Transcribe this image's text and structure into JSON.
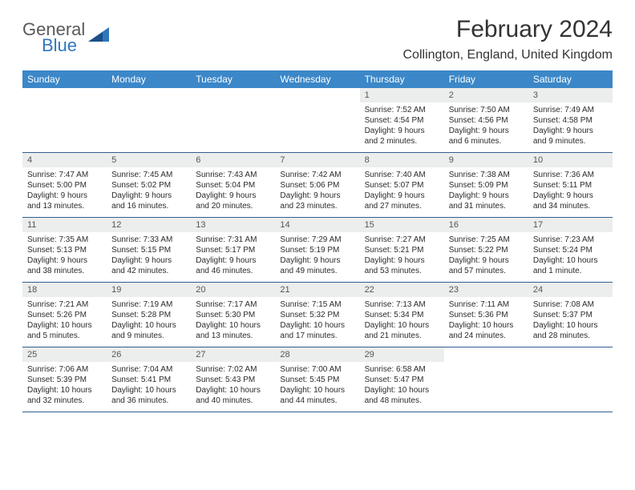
{
  "logo": {
    "general": "General",
    "blue": "Blue"
  },
  "title": "February 2024",
  "location": "Collington, England, United Kingdom",
  "colors": {
    "header_bg": "#3b87c8",
    "header_text": "#ffffff",
    "daynum_bg": "#eceded",
    "border": "#2f5f8f",
    "logo_gray": "#5a5a5a",
    "logo_blue": "#2f77bc"
  },
  "days_of_week": [
    "Sunday",
    "Monday",
    "Tuesday",
    "Wednesday",
    "Thursday",
    "Friday",
    "Saturday"
  ],
  "weeks": [
    [
      {
        "empty": true
      },
      {
        "empty": true
      },
      {
        "empty": true
      },
      {
        "empty": true
      },
      {
        "num": "1",
        "sunrise": "Sunrise: 7:52 AM",
        "sunset": "Sunset: 4:54 PM",
        "day1": "Daylight: 9 hours",
        "day2": "and 2 minutes."
      },
      {
        "num": "2",
        "sunrise": "Sunrise: 7:50 AM",
        "sunset": "Sunset: 4:56 PM",
        "day1": "Daylight: 9 hours",
        "day2": "and 6 minutes."
      },
      {
        "num": "3",
        "sunrise": "Sunrise: 7:49 AM",
        "sunset": "Sunset: 4:58 PM",
        "day1": "Daylight: 9 hours",
        "day2": "and 9 minutes."
      }
    ],
    [
      {
        "num": "4",
        "sunrise": "Sunrise: 7:47 AM",
        "sunset": "Sunset: 5:00 PM",
        "day1": "Daylight: 9 hours",
        "day2": "and 13 minutes."
      },
      {
        "num": "5",
        "sunrise": "Sunrise: 7:45 AM",
        "sunset": "Sunset: 5:02 PM",
        "day1": "Daylight: 9 hours",
        "day2": "and 16 minutes."
      },
      {
        "num": "6",
        "sunrise": "Sunrise: 7:43 AM",
        "sunset": "Sunset: 5:04 PM",
        "day1": "Daylight: 9 hours",
        "day2": "and 20 minutes."
      },
      {
        "num": "7",
        "sunrise": "Sunrise: 7:42 AM",
        "sunset": "Sunset: 5:06 PM",
        "day1": "Daylight: 9 hours",
        "day2": "and 23 minutes."
      },
      {
        "num": "8",
        "sunrise": "Sunrise: 7:40 AM",
        "sunset": "Sunset: 5:07 PM",
        "day1": "Daylight: 9 hours",
        "day2": "and 27 minutes."
      },
      {
        "num": "9",
        "sunrise": "Sunrise: 7:38 AM",
        "sunset": "Sunset: 5:09 PM",
        "day1": "Daylight: 9 hours",
        "day2": "and 31 minutes."
      },
      {
        "num": "10",
        "sunrise": "Sunrise: 7:36 AM",
        "sunset": "Sunset: 5:11 PM",
        "day1": "Daylight: 9 hours",
        "day2": "and 34 minutes."
      }
    ],
    [
      {
        "num": "11",
        "sunrise": "Sunrise: 7:35 AM",
        "sunset": "Sunset: 5:13 PM",
        "day1": "Daylight: 9 hours",
        "day2": "and 38 minutes."
      },
      {
        "num": "12",
        "sunrise": "Sunrise: 7:33 AM",
        "sunset": "Sunset: 5:15 PM",
        "day1": "Daylight: 9 hours",
        "day2": "and 42 minutes."
      },
      {
        "num": "13",
        "sunrise": "Sunrise: 7:31 AM",
        "sunset": "Sunset: 5:17 PM",
        "day1": "Daylight: 9 hours",
        "day2": "and 46 minutes."
      },
      {
        "num": "14",
        "sunrise": "Sunrise: 7:29 AM",
        "sunset": "Sunset: 5:19 PM",
        "day1": "Daylight: 9 hours",
        "day2": "and 49 minutes."
      },
      {
        "num": "15",
        "sunrise": "Sunrise: 7:27 AM",
        "sunset": "Sunset: 5:21 PM",
        "day1": "Daylight: 9 hours",
        "day2": "and 53 minutes."
      },
      {
        "num": "16",
        "sunrise": "Sunrise: 7:25 AM",
        "sunset": "Sunset: 5:22 PM",
        "day1": "Daylight: 9 hours",
        "day2": "and 57 minutes."
      },
      {
        "num": "17",
        "sunrise": "Sunrise: 7:23 AM",
        "sunset": "Sunset: 5:24 PM",
        "day1": "Daylight: 10 hours",
        "day2": "and 1 minute."
      }
    ],
    [
      {
        "num": "18",
        "sunrise": "Sunrise: 7:21 AM",
        "sunset": "Sunset: 5:26 PM",
        "day1": "Daylight: 10 hours",
        "day2": "and 5 minutes."
      },
      {
        "num": "19",
        "sunrise": "Sunrise: 7:19 AM",
        "sunset": "Sunset: 5:28 PM",
        "day1": "Daylight: 10 hours",
        "day2": "and 9 minutes."
      },
      {
        "num": "20",
        "sunrise": "Sunrise: 7:17 AM",
        "sunset": "Sunset: 5:30 PM",
        "day1": "Daylight: 10 hours",
        "day2": "and 13 minutes."
      },
      {
        "num": "21",
        "sunrise": "Sunrise: 7:15 AM",
        "sunset": "Sunset: 5:32 PM",
        "day1": "Daylight: 10 hours",
        "day2": "and 17 minutes."
      },
      {
        "num": "22",
        "sunrise": "Sunrise: 7:13 AM",
        "sunset": "Sunset: 5:34 PM",
        "day1": "Daylight: 10 hours",
        "day2": "and 21 minutes."
      },
      {
        "num": "23",
        "sunrise": "Sunrise: 7:11 AM",
        "sunset": "Sunset: 5:36 PM",
        "day1": "Daylight: 10 hours",
        "day2": "and 24 minutes."
      },
      {
        "num": "24",
        "sunrise": "Sunrise: 7:08 AM",
        "sunset": "Sunset: 5:37 PM",
        "day1": "Daylight: 10 hours",
        "day2": "and 28 minutes."
      }
    ],
    [
      {
        "num": "25",
        "sunrise": "Sunrise: 7:06 AM",
        "sunset": "Sunset: 5:39 PM",
        "day1": "Daylight: 10 hours",
        "day2": "and 32 minutes."
      },
      {
        "num": "26",
        "sunrise": "Sunrise: 7:04 AM",
        "sunset": "Sunset: 5:41 PM",
        "day1": "Daylight: 10 hours",
        "day2": "and 36 minutes."
      },
      {
        "num": "27",
        "sunrise": "Sunrise: 7:02 AM",
        "sunset": "Sunset: 5:43 PM",
        "day1": "Daylight: 10 hours",
        "day2": "and 40 minutes."
      },
      {
        "num": "28",
        "sunrise": "Sunrise: 7:00 AM",
        "sunset": "Sunset: 5:45 PM",
        "day1": "Daylight: 10 hours",
        "day2": "and 44 minutes."
      },
      {
        "num": "29",
        "sunrise": "Sunrise: 6:58 AM",
        "sunset": "Sunset: 5:47 PM",
        "day1": "Daylight: 10 hours",
        "day2": "and 48 minutes."
      },
      {
        "empty": true
      },
      {
        "empty": true
      }
    ]
  ]
}
